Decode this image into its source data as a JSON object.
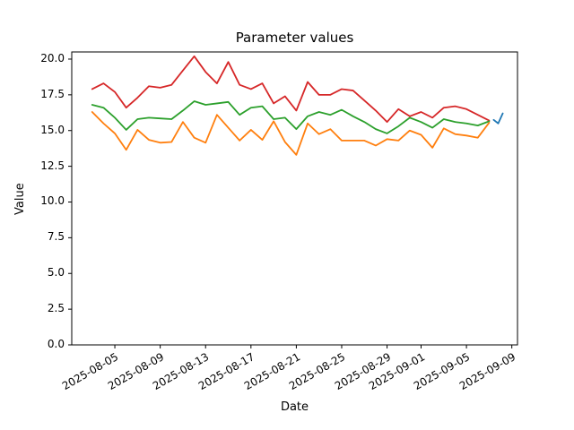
{
  "figure": {
    "background": "#ffffff",
    "spine_color": "#000000"
  },
  "chart_data": {
    "type": "line",
    "title": "Parameter values",
    "xlabel": "Date",
    "ylabel": "Value",
    "grid": false,
    "legend": "none",
    "x_axis": {
      "start_date": "2025-08-03",
      "tick_labels": [
        "2025-08-05",
        "2025-08-09",
        "2025-08-13",
        "2025-08-17",
        "2025-08-21",
        "2025-08-25",
        "2025-08-29",
        "2025-09-01",
        "2025-09-05",
        "2025-09-09"
      ],
      "tick_day_offsets": [
        2,
        6,
        10,
        14,
        18,
        22,
        26,
        29,
        33,
        37
      ],
      "xlim_day_offsets": [
        -1.8,
        37.5
      ],
      "tick_label_rotation_deg": 30
    },
    "y_axis": {
      "tick_labels": [
        "0.0",
        "2.5",
        "5.0",
        "7.5",
        "10.0",
        "12.5",
        "15.0",
        "17.5",
        "20.0"
      ],
      "tick_values": [
        0,
        2.5,
        5,
        7.5,
        10,
        12.5,
        15,
        17.5,
        20
      ],
      "ylim": [
        0,
        20.5
      ]
    },
    "dates": [
      "2025-08-03",
      "2025-08-04",
      "2025-08-05",
      "2025-08-06",
      "2025-08-07",
      "2025-08-08",
      "2025-08-09",
      "2025-08-10",
      "2025-08-11",
      "2025-08-12",
      "2025-08-13",
      "2025-08-14",
      "2025-08-15",
      "2025-08-16",
      "2025-08-17",
      "2025-08-18",
      "2025-08-19",
      "2025-08-20",
      "2025-08-21",
      "2025-08-22",
      "2025-08-23",
      "2025-08-24",
      "2025-08-25",
      "2025-08-26",
      "2025-08-27",
      "2025-08-28",
      "2025-08-29",
      "2025-08-30",
      "2025-08-31",
      "2025-09-01",
      "2025-09-02",
      "2025-09-03",
      "2025-09-04",
      "2025-09-05",
      "2025-09-06",
      "2025-09-07"
    ],
    "series": [
      {
        "name": "red",
        "color": "#d62728",
        "values": [
          17.9,
          18.3,
          17.7,
          16.6,
          17.3,
          18.1,
          18.0,
          18.2,
          19.2,
          20.2,
          19.1,
          18.3,
          19.8,
          18.2,
          17.9,
          18.3,
          16.9,
          17.4,
          16.4,
          18.4,
          17.5,
          17.5,
          17.9,
          17.8,
          17.1,
          16.4,
          15.6,
          16.5,
          16.0,
          16.3,
          15.9,
          16.6,
          16.7,
          16.5,
          16.1,
          15.7
        ]
      },
      {
        "name": "green",
        "color": "#2ca02c",
        "values": [
          16.8,
          16.6,
          15.9,
          15.05,
          15.8,
          15.9,
          15.85,
          15.8,
          16.4,
          17.05,
          16.8,
          16.9,
          17.0,
          16.1,
          16.6,
          16.7,
          15.8,
          15.9,
          15.1,
          16.0,
          16.3,
          16.1,
          16.45,
          16.0,
          15.6,
          15.1,
          14.8,
          15.3,
          15.9,
          15.6,
          15.2,
          15.8,
          15.6,
          15.5,
          15.35,
          15.65
        ]
      },
      {
        "name": "orange",
        "color": "#ff7f0e",
        "values": [
          16.3,
          15.5,
          14.8,
          13.65,
          15.05,
          14.35,
          14.15,
          14.2,
          15.6,
          14.5,
          14.15,
          16.1,
          15.2,
          14.3,
          15.05,
          14.35,
          15.65,
          14.2,
          13.3,
          15.5,
          14.75,
          15.1,
          14.3,
          14.3,
          14.3,
          13.95,
          14.4,
          14.3,
          15.0,
          14.7,
          13.8,
          15.15,
          14.75,
          14.65,
          14.5,
          15.55
        ]
      }
    ],
    "final_segment": {
      "name": "blue",
      "color": "#1f77b4",
      "x_day_offsets": [
        35.4,
        35.8,
        36.2
      ],
      "values": [
        15.75,
        15.5,
        16.2
      ]
    }
  }
}
